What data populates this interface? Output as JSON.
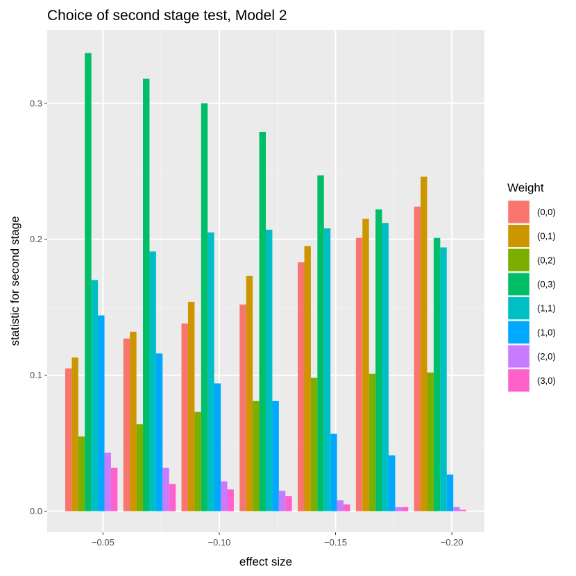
{
  "chart_data": {
    "type": "bar",
    "title": "Choice of second stage test, Model 2",
    "xlabel": "effect size",
    "ylabel": "statistic for second stage",
    "x_continuous": true,
    "x_values": [
      -0.045,
      -0.07,
      -0.095,
      -0.12,
      -0.145,
      -0.17,
      -0.195
    ],
    "x_ticks": [
      -0.05,
      -0.1,
      -0.15,
      -0.2
    ],
    "x_tick_labels": [
      "−0.05",
      "−0.10",
      "−0.15",
      "−0.20"
    ],
    "xlim": [
      -0.026,
      -0.214
    ],
    "y_ticks": [
      0.0,
      0.1,
      0.2,
      0.3
    ],
    "y_tick_labels": [
      "0.0",
      "0.1",
      "0.2",
      "0.3"
    ],
    "ylim": [
      -0.0155,
      0.354
    ],
    "legend_title": "Weight",
    "legend_position": "right",
    "series": [
      {
        "name": "(0,0)",
        "color": "#F8766D",
        "values": [
          0.105,
          0.127,
          0.138,
          0.152,
          0.183,
          0.201,
          0.224
        ]
      },
      {
        "name": "(0,1)",
        "color": "#CD9600",
        "values": [
          0.113,
          0.132,
          0.154,
          0.173,
          0.195,
          0.215,
          0.246
        ]
      },
      {
        "name": "(0,2)",
        "color": "#7CAE00",
        "values": [
          0.055,
          0.064,
          0.073,
          0.081,
          0.098,
          0.101,
          0.102
        ]
      },
      {
        "name": "(0,3)",
        "color": "#00BE67",
        "values": [
          0.337,
          0.318,
          0.3,
          0.279,
          0.247,
          0.222,
          0.201
        ]
      },
      {
        "name": "(1,1)",
        "color": "#00BFC4",
        "values": [
          0.17,
          0.191,
          0.205,
          0.207,
          0.208,
          0.212,
          0.194
        ]
      },
      {
        "name": "(1,0)",
        "color": "#00A9FF",
        "values": [
          0.144,
          0.116,
          0.094,
          0.081,
          0.057,
          0.041,
          0.027
        ]
      },
      {
        "name": "(2,0)",
        "color": "#C77CFF",
        "values": [
          0.043,
          0.032,
          0.022,
          0.015,
          0.008,
          0.003,
          0.003
        ]
      },
      {
        "name": "(3,0)",
        "color": "#FF61CC",
        "values": [
          0.032,
          0.02,
          0.016,
          0.011,
          0.005,
          0.003,
          0.001
        ]
      }
    ]
  },
  "colors": {
    "panel_background": "#EBEBEB",
    "grid_major": "#FFFFFF",
    "grid_minor": "#F5F5F5",
    "tick_mark": "#333333",
    "tick_text": "#4D4D4D"
  }
}
